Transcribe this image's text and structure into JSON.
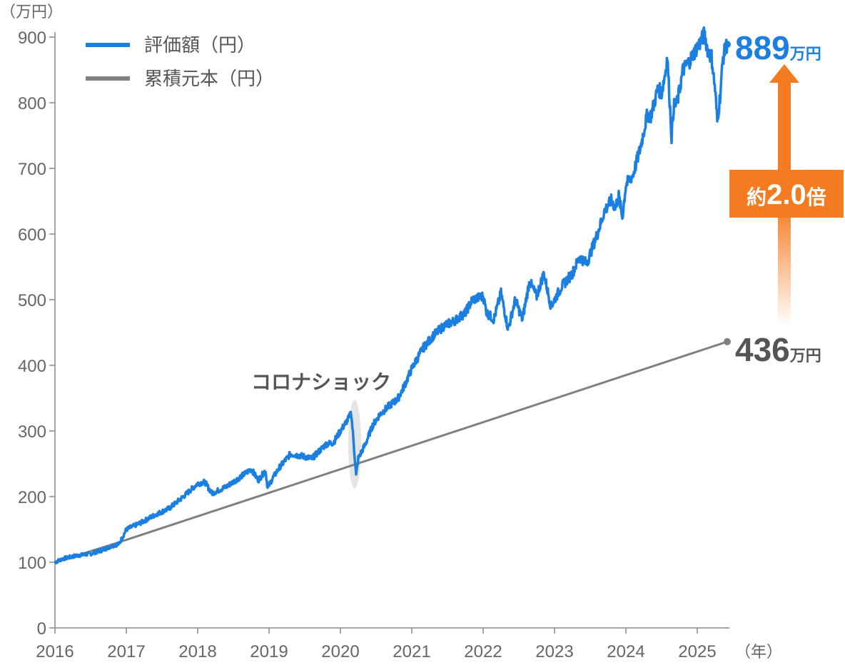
{
  "chart_data": {
    "type": "line",
    "title": "",
    "y_unit": "（万円）",
    "x_unit": "（年）",
    "xlim": [
      2016,
      2025.45
    ],
    "ylim": [
      0,
      900
    ],
    "x_ticks": [
      2016,
      2017,
      2018,
      2019,
      2020,
      2021,
      2022,
      2023,
      2024,
      2025
    ],
    "x_tick_labels": [
      "2016",
      "2017",
      "2018",
      "2019",
      "2020",
      "2021",
      "2022",
      "2023",
      "2024",
      "2025"
    ],
    "y_ticks": [
      0,
      100,
      200,
      300,
      400,
      500,
      600,
      700,
      800,
      900
    ],
    "y_tick_labels": [
      "0",
      "100",
      "200",
      "300",
      "400",
      "500",
      "600",
      "700",
      "800",
      "900"
    ],
    "grid": false,
    "legend_position": "top-left",
    "series": [
      {
        "name": "評価額（円）",
        "color": "#1a7fe0",
        "points": [
          [
            2016.0,
            100
          ],
          [
            2016.1,
            105
          ],
          [
            2016.3,
            110
          ],
          [
            2016.5,
            113
          ],
          [
            2016.65,
            118
          ],
          [
            2016.8,
            125
          ],
          [
            2016.9,
            128
          ],
          [
            2017.0,
            150
          ],
          [
            2017.2,
            160
          ],
          [
            2017.4,
            172
          ],
          [
            2017.6,
            182
          ],
          [
            2017.8,
            200
          ],
          [
            2018.0,
            220
          ],
          [
            2018.1,
            222
          ],
          [
            2018.2,
            205
          ],
          [
            2018.4,
            215
          ],
          [
            2018.6,
            230
          ],
          [
            2018.75,
            242
          ],
          [
            2018.85,
            225
          ],
          [
            2018.95,
            240
          ],
          [
            2018.98,
            213
          ],
          [
            2019.05,
            228
          ],
          [
            2019.15,
            245
          ],
          [
            2019.3,
            265
          ],
          [
            2019.45,
            262
          ],
          [
            2019.6,
            258
          ],
          [
            2019.8,
            280
          ],
          [
            2019.9,
            282
          ],
          [
            2020.0,
            300
          ],
          [
            2020.12,
            320
          ],
          [
            2020.15,
            328
          ],
          [
            2020.18,
            290
          ],
          [
            2020.22,
            232
          ],
          [
            2020.25,
            258
          ],
          [
            2020.35,
            280
          ],
          [
            2020.45,
            308
          ],
          [
            2020.55,
            325
          ],
          [
            2020.7,
            340
          ],
          [
            2020.8,
            348
          ],
          [
            2020.88,
            365
          ],
          [
            2021.0,
            395
          ],
          [
            2021.15,
            425
          ],
          [
            2021.3,
            445
          ],
          [
            2021.45,
            460
          ],
          [
            2021.6,
            468
          ],
          [
            2021.75,
            480
          ],
          [
            2021.85,
            500
          ],
          [
            2022.0,
            505
          ],
          [
            2022.05,
            480
          ],
          [
            2022.15,
            470
          ],
          [
            2022.25,
            510
          ],
          [
            2022.35,
            455
          ],
          [
            2022.45,
            500
          ],
          [
            2022.55,
            470
          ],
          [
            2022.65,
            528
          ],
          [
            2022.75,
            505
          ],
          [
            2022.85,
            540
          ],
          [
            2022.95,
            490
          ],
          [
            2023.1,
            520
          ],
          [
            2023.25,
            540
          ],
          [
            2023.35,
            565
          ],
          [
            2023.45,
            555
          ],
          [
            2023.6,
            600
          ],
          [
            2023.7,
            635
          ],
          [
            2023.8,
            652
          ],
          [
            2023.85,
            640
          ],
          [
            2023.9,
            658
          ],
          [
            2023.95,
            625
          ],
          [
            2024.0,
            675
          ],
          [
            2024.1,
            690
          ],
          [
            2024.2,
            730
          ],
          [
            2024.3,
            782
          ],
          [
            2024.35,
            780
          ],
          [
            2024.45,
            822
          ],
          [
            2024.5,
            815
          ],
          [
            2024.55,
            845
          ],
          [
            2024.58,
            870
          ],
          [
            2024.62,
            790
          ],
          [
            2024.64,
            748
          ],
          [
            2024.67,
            795
          ],
          [
            2024.72,
            800
          ],
          [
            2024.8,
            850
          ],
          [
            2024.9,
            865
          ],
          [
            2025.0,
            885
          ],
          [
            2025.05,
            893
          ],
          [
            2025.1,
            905
          ],
          [
            2025.15,
            878
          ],
          [
            2025.2,
            870
          ],
          [
            2025.25,
            820
          ],
          [
            2025.28,
            772
          ],
          [
            2025.32,
            810
          ],
          [
            2025.36,
            868
          ],
          [
            2025.4,
            885
          ],
          [
            2025.42,
            889
          ]
        ]
      },
      {
        "name": "累積元本（円）",
        "color": "#808080",
        "points": [
          [
            2016.0,
            100
          ],
          [
            2016.83,
            128
          ],
          [
            2025.42,
            436
          ]
        ]
      }
    ],
    "annotations": {
      "event_label": "コロナショック",
      "event_x": 2020.2,
      "eval_end_value": "889",
      "eval_end_unit": "万円",
      "principal_end_value": "436",
      "principal_end_unit": "万円",
      "multiplier_prefix": "約",
      "multiplier_value": "2.0",
      "multiplier_suffix": "倍",
      "accent_color": "#f47b20"
    }
  }
}
